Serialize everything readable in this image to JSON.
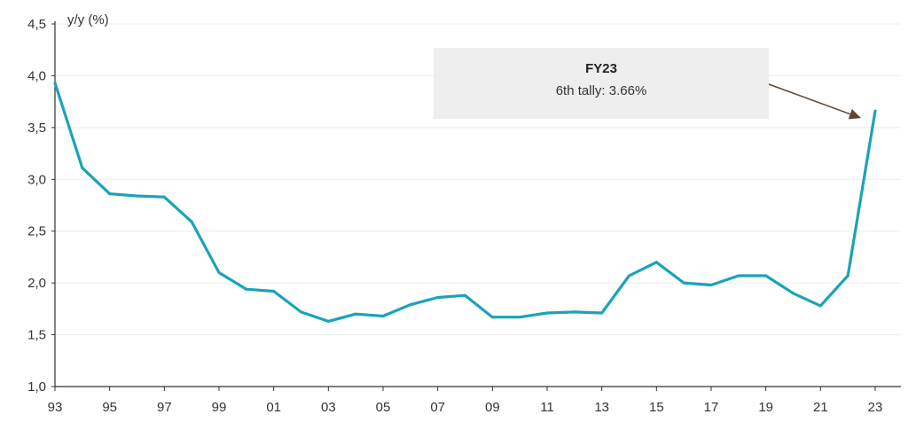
{
  "chart_data": {
    "type": "line",
    "ylabel": "y/y (%)",
    "ylim": [
      1.0,
      4.5
    ],
    "yticks": [
      1.0,
      1.5,
      2.0,
      2.5,
      3.0,
      3.5,
      4.0,
      4.5
    ],
    "ytick_labels": [
      "1,0",
      "1,5",
      "2,0",
      "2,5",
      "3,0",
      "3,5",
      "4,0",
      "4,5"
    ],
    "xlim": [
      1993,
      2024
    ],
    "xticks": [
      1993,
      1995,
      1997,
      1999,
      2001,
      2003,
      2005,
      2007,
      2009,
      2011,
      2013,
      2015,
      2017,
      2019,
      2021,
      2023
    ],
    "xtick_labels": [
      "93",
      "95",
      "97",
      "99",
      "01",
      "03",
      "05",
      "07",
      "09",
      "11",
      "13",
      "15",
      "17",
      "19",
      "21",
      "23"
    ],
    "grid": "horizontal",
    "series": [
      {
        "color": "#1aa3b8",
        "x": [
          1993,
          1994,
          1995,
          1996,
          1997,
          1998,
          1999,
          2000,
          2001,
          2002,
          2003,
          2004,
          2005,
          2006,
          2007,
          2008,
          2009,
          2010,
          2011,
          2012,
          2013,
          2014,
          2015,
          2016,
          2017,
          2018,
          2019,
          2020,
          2021,
          2022,
          2023
        ],
        "values": [
          3.93,
          3.11,
          2.86,
          2.84,
          2.83,
          2.59,
          2.1,
          1.94,
          1.92,
          1.72,
          1.63,
          1.7,
          1.68,
          1.79,
          1.86,
          1.88,
          1.67,
          1.67,
          1.71,
          1.72,
          1.71,
          2.07,
          2.2,
          2.0,
          1.98,
          2.07,
          2.07,
          1.9,
          1.78,
          2.07,
          3.66
        ]
      }
    ],
    "annotation": {
      "title": "FY23",
      "text": "6th tally: 3.66%",
      "target_x": 2023,
      "target_y": 3.66,
      "box_color": "#eeeeee",
      "arrow_color": "#5a4636"
    }
  }
}
